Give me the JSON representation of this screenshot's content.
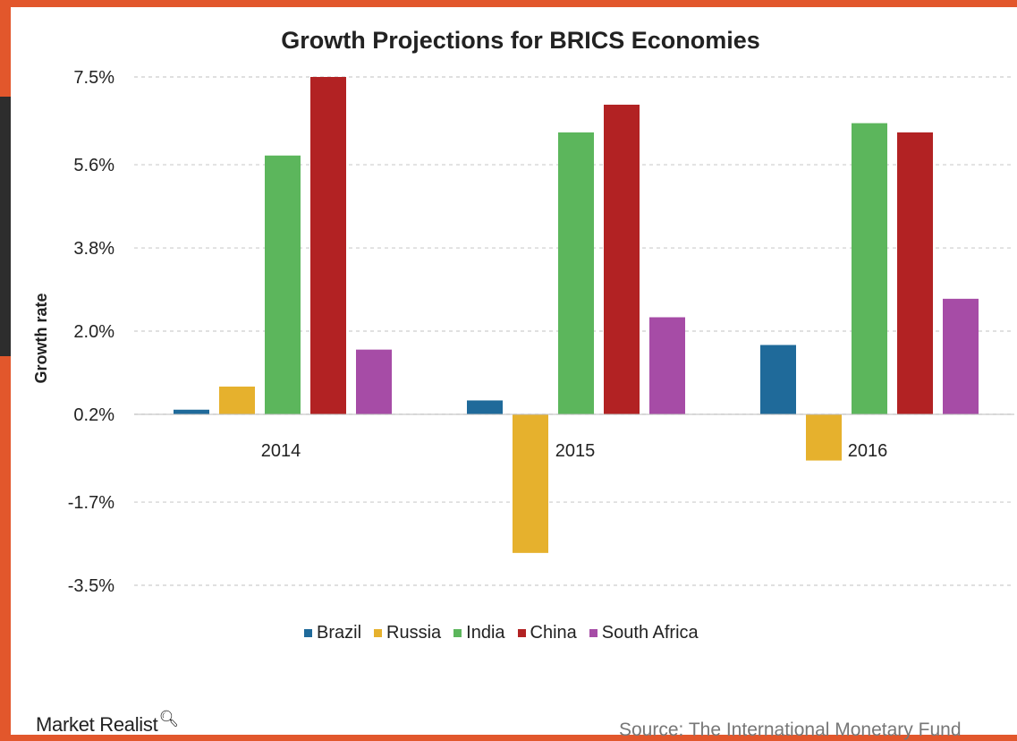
{
  "chart_data": {
    "type": "bar",
    "title": "Growth Projections for BRICS Economies",
    "xlabel": "",
    "ylabel": "Growth rate",
    "categories": [
      "2014",
      "2015",
      "2016"
    ],
    "yticks": [
      "7.5%",
      "5.6%",
      "3.8%",
      "2.0%",
      "0.2%",
      "-1.7%",
      "-3.5%"
    ],
    "ylim": [
      -3.5,
      7.5
    ],
    "grid": true,
    "legend_position": "bottom",
    "series": [
      {
        "name": "Brazil",
        "color": "#1f6a9a",
        "values": [
          0.3,
          0.5,
          1.7
        ]
      },
      {
        "name": "Russia",
        "color": "#e6b12d",
        "values": [
          0.8,
          -2.8,
          -0.8
        ]
      },
      {
        "name": "India",
        "color": "#5cb65c",
        "values": [
          5.8,
          6.3,
          6.5
        ]
      },
      {
        "name": "China",
        "color": "#b22223",
        "values": [
          7.5,
          6.9,
          6.3
        ]
      },
      {
        "name": "South Africa",
        "color": "#a64ca6",
        "values": [
          1.6,
          2.3,
          2.7
        ]
      }
    ]
  },
  "branding": {
    "logo_text": "Market Realist",
    "logo_icon": "search-icon"
  },
  "source_text": "Source: The International Monetary Fund"
}
